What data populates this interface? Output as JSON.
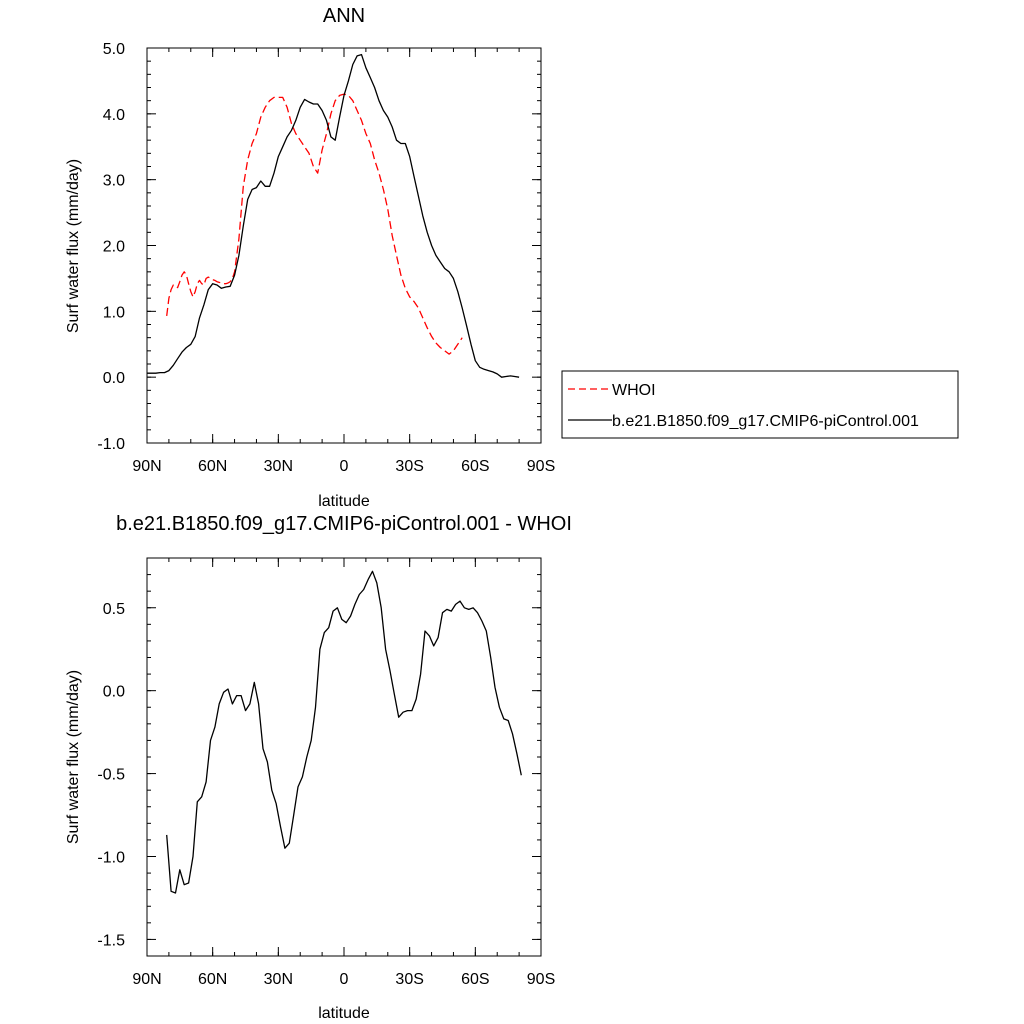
{
  "chart_data": [
    {
      "type": "line",
      "title": "ANN",
      "xlabel": "latitude",
      "ylabel": "Surf water flux (mm/day)",
      "x_ticks": [
        90,
        60,
        30,
        0,
        -30,
        -60,
        -90
      ],
      "x_tick_labels": [
        "90N",
        "60N",
        "30N",
        "0",
        "30S",
        "60S",
        "90S"
      ],
      "xlim": [
        90,
        -90
      ],
      "ylim": [
        -1.0,
        5.0
      ],
      "y_ticks": [
        -1.0,
        0.0,
        1.0,
        2.0,
        3.0,
        4.0,
        5.0
      ],
      "y_tick_labels": [
        "-1.0",
        "0.0",
        "1.0",
        "2.0",
        "3.0",
        "4.0",
        "5.0"
      ],
      "grid": false,
      "legend": "right",
      "series": [
        {
          "name": "WHOI",
          "color": "#ff0000",
          "dash": "dashed",
          "x": [
            81,
            80,
            79,
            78,
            77,
            76,
            75,
            74,
            73,
            72,
            71,
            70,
            69,
            68,
            67,
            66,
            65,
            64,
            63,
            62,
            61,
            60,
            59,
            58,
            57,
            56,
            55,
            54,
            53,
            52,
            51,
            50,
            48,
            46,
            44,
            42,
            40,
            38,
            36,
            34,
            32,
            30,
            28,
            26,
            24,
            22,
            20,
            18,
            16,
            14,
            12,
            10,
            8,
            6,
            4,
            2,
            0,
            -2,
            -4,
            -6,
            -8,
            -10,
            -12,
            -14,
            -16,
            -18,
            -20,
            -22,
            -24,
            -26,
            -28,
            -30,
            -32,
            -34,
            -36,
            -38,
            -40,
            -42,
            -44,
            -46,
            -48,
            -50,
            -52,
            -54,
            -56,
            -58,
            -60,
            -62,
            -64,
            -66,
            -68,
            -70,
            -72,
            -74,
            -76,
            -78
          ],
          "y": [
            0.93,
            1.2,
            1.33,
            1.4,
            1.38,
            1.36,
            1.45,
            1.55,
            1.6,
            1.55,
            1.42,
            1.3,
            1.22,
            1.3,
            1.42,
            1.47,
            1.42,
            1.4,
            1.5,
            1.52,
            1.5,
            1.48,
            1.47,
            1.45,
            1.44,
            1.43,
            1.42,
            1.42,
            1.43,
            1.45,
            1.5,
            1.6,
            2.1,
            2.9,
            3.3,
            3.55,
            3.7,
            3.95,
            4.1,
            4.2,
            4.25,
            4.25,
            4.25,
            4.1,
            3.85,
            3.7,
            3.6,
            3.5,
            3.4,
            3.2,
            3.1,
            3.45,
            3.7,
            4.0,
            4.2,
            4.28,
            4.3,
            4.28,
            4.2,
            4.05,
            3.9,
            3.7,
            3.55,
            3.3,
            3.1,
            2.85,
            2.55,
            2.15,
            1.85,
            1.55,
            1.35,
            1.22,
            1.15,
            1.05,
            0.9,
            0.75,
            0.62,
            0.52,
            0.45,
            0.4,
            0.35,
            0.4,
            0.5,
            0.6,
            null,
            null,
            null,
            null,
            null,
            null,
            null,
            null,
            null,
            null,
            null,
            null
          ]
        },
        {
          "name": "b.e21.B1850.f09_g17.CMIP6-piControl.001",
          "color": "#000000",
          "dash": "solid",
          "x": [
            90,
            88,
            86,
            84,
            82,
            80,
            78,
            76,
            74,
            72,
            70,
            68,
            66,
            64,
            62,
            60,
            58,
            56,
            54,
            52,
            50,
            48,
            46,
            44,
            42,
            40,
            38,
            36,
            34,
            32,
            30,
            28,
            26,
            24,
            22,
            20,
            18,
            16,
            14,
            12,
            10,
            8,
            6,
            4,
            2,
            0,
            -2,
            -4,
            -6,
            -8,
            -10,
            -12,
            -14,
            -16,
            -18,
            -20,
            -22,
            -24,
            -26,
            -28,
            -30,
            -32,
            -34,
            -36,
            -38,
            -40,
            -42,
            -44,
            -46,
            -48,
            -50,
            -52,
            -54,
            -56,
            -58,
            -60,
            -62,
            -64,
            -66,
            -68,
            -70,
            -72,
            -74,
            -76,
            -78,
            -80,
            -82,
            -84,
            -86,
            -88,
            -90
          ],
          "y": [
            0.06,
            0.06,
            0.06,
            0.07,
            0.07,
            0.1,
            0.18,
            0.28,
            0.38,
            0.45,
            0.5,
            0.62,
            0.9,
            1.1,
            1.33,
            1.42,
            1.4,
            1.35,
            1.37,
            1.38,
            1.55,
            1.85,
            2.3,
            2.7,
            2.85,
            2.88,
            2.98,
            2.9,
            2.9,
            3.1,
            3.35,
            3.5,
            3.65,
            3.75,
            3.9,
            4.1,
            4.22,
            4.18,
            4.15,
            4.15,
            4.05,
            3.9,
            3.65,
            3.6,
            3.95,
            4.28,
            4.5,
            4.75,
            4.88,
            4.9,
            4.7,
            4.55,
            4.4,
            4.2,
            4.05,
            3.95,
            3.8,
            3.6,
            3.55,
            3.55,
            3.35,
            3.05,
            2.75,
            2.45,
            2.2,
            2.0,
            1.85,
            1.75,
            1.65,
            1.6,
            1.5,
            1.3,
            1.05,
            0.78,
            0.5,
            0.25,
            0.15,
            0.12,
            0.1,
            0.08,
            0.05,
            0.0,
            0.01,
            0.02,
            0.01,
            0.0,
            null,
            null,
            null,
            null,
            null
          ]
        }
      ]
    },
    {
      "type": "line",
      "title": "b.e21.B1850.f09_g17.CMIP6-piControl.001 - WHOI",
      "xlabel": "latitude",
      "ylabel": "Surf water flux (mm/day)",
      "x_ticks": [
        90,
        60,
        30,
        0,
        -30,
        -60,
        -90
      ],
      "x_tick_labels": [
        "90N",
        "60N",
        "30N",
        "0",
        "30S",
        "60S",
        "90S"
      ],
      "xlim": [
        90,
        -90
      ],
      "ylim": [
        -1.6,
        0.8
      ],
      "y_ticks": [
        -1.5,
        -1.0,
        -0.5,
        0.0,
        0.5
      ],
      "y_tick_labels": [
        "-1.5",
        "-1.0",
        "-0.5",
        "0.0",
        "0.5"
      ],
      "grid": false,
      "series": [
        {
          "name": "",
          "color": "#000000",
          "dash": "solid",
          "x": [
            81,
            79,
            77,
            75,
            73,
            71,
            69,
            67,
            65,
            63,
            61,
            59,
            57,
            55,
            53,
            51,
            49,
            47,
            45,
            43,
            41,
            39,
            37,
            35,
            33,
            31,
            29,
            27,
            25,
            23,
            21,
            19,
            17,
            15,
            13,
            11,
            9,
            7,
            5,
            3,
            1,
            -1,
            -3,
            -5,
            -7,
            -9,
            -11,
            -13,
            -15,
            -17,
            -19,
            -21,
            -23,
            -25,
            -27,
            -29,
            -31,
            -33,
            -35,
            -37,
            -39,
            -41,
            -43,
            -45,
            -47,
            -49,
            -51,
            -53,
            -55,
            -57,
            -59,
            -61,
            -63,
            -65,
            -67,
            -69,
            -71,
            -73,
            -75,
            -77,
            -79,
            -81,
            -83,
            -85,
            -87,
            -89
          ],
          "y": [
            -0.87,
            -1.21,
            -1.22,
            -1.08,
            -1.17,
            -1.16,
            -1.0,
            -0.67,
            -0.64,
            -0.55,
            -0.3,
            -0.22,
            -0.08,
            -0.01,
            0.01,
            -0.08,
            -0.03,
            -0.03,
            -0.12,
            -0.08,
            0.05,
            -0.08,
            -0.35,
            -0.43,
            -0.6,
            -0.68,
            -0.82,
            -0.95,
            -0.92,
            -0.75,
            -0.58,
            -0.52,
            -0.4,
            -0.3,
            -0.1,
            0.25,
            0.35,
            0.38,
            0.48,
            0.5,
            0.43,
            0.41,
            0.45,
            0.52,
            0.58,
            0.61,
            0.67,
            0.72,
            0.65,
            0.5,
            0.25,
            0.12,
            -0.02,
            -0.16,
            -0.13,
            -0.12,
            -0.12,
            -0.05,
            0.1,
            0.36,
            0.33,
            0.27,
            0.32,
            0.47,
            0.49,
            0.48,
            0.52,
            0.54,
            0.5,
            0.49,
            0.5,
            0.47,
            0.42,
            0.36,
            0.2,
            0.02,
            -0.1,
            -0.17,
            -0.18,
            -0.26,
            -0.38,
            -0.51,
            null,
            null,
            null,
            null
          ]
        }
      ]
    }
  ]
}
